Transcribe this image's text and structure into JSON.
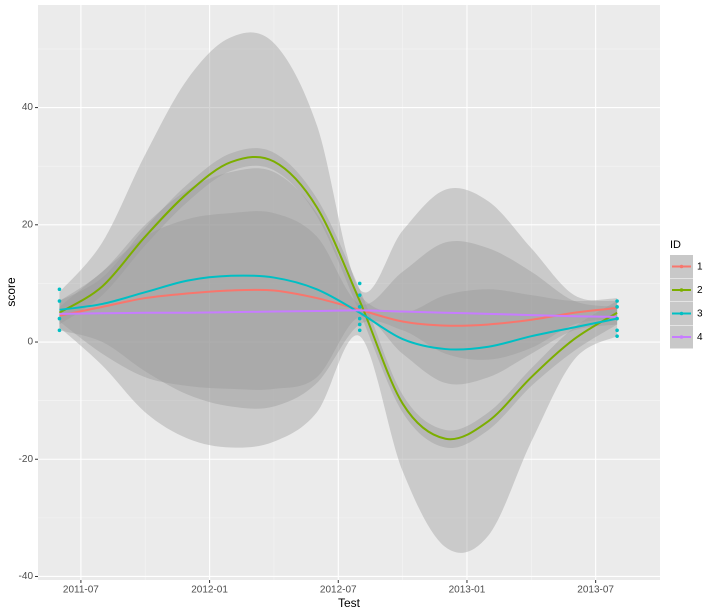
{
  "chart_data": {
    "type": "line",
    "x_label": "Test",
    "y_label": "score",
    "legend_title": "ID",
    "legend_position": "right",
    "grid": true,
    "x": [
      "2011-06",
      "2011-08",
      "2011-10",
      "2011-12",
      "2012-02",
      "2012-04",
      "2012-06",
      "2012-08",
      "2012-10",
      "2012-12",
      "2013-02",
      "2013-04",
      "2013-06",
      "2013-08"
    ],
    "xlim": [
      "2011-05",
      "2013-10"
    ],
    "xticks": [
      "2011-07",
      "2012-01",
      "2012-07",
      "2013-01",
      "2013-07"
    ],
    "xminorticks": [
      "2011-10",
      "2012-04",
      "2012-10",
      "2013-04"
    ],
    "ylim": [
      -40.6,
      57.5
    ],
    "yticks": [
      -40,
      -20,
      0,
      20,
      40
    ],
    "yminorticks": [
      -30,
      -10,
      10,
      30,
      50
    ],
    "ribbon_color": "#999999",
    "series": [
      {
        "name": "1",
        "color": "#f8766d",
        "values": [
          4.5,
          6,
          7.5,
          8.3,
          8.8,
          8.8,
          7.5,
          5.5,
          3.5,
          2.8,
          3,
          3.8,
          5,
          5.8
        ],
        "upper": [
          7,
          12,
          20,
          26,
          29,
          29,
          22,
          8,
          5,
          8,
          9,
          8,
          7,
          7.5
        ],
        "lower": [
          2,
          0,
          -5,
          -9,
          -11,
          -11,
          -7,
          3,
          2,
          -2,
          -3,
          -1,
          3,
          4
        ]
      },
      {
        "name": "2",
        "color": "#7cae00",
        "values": [
          5,
          9.5,
          18,
          25.5,
          30.7,
          30.8,
          23,
          7,
          -10.5,
          -16.5,
          -13.5,
          -6,
          0.5,
          5
        ],
        "upper": [
          7,
          11,
          19.5,
          27,
          32.2,
          32.3,
          24.5,
          9,
          -9,
          -15,
          -12,
          -4.5,
          2.5,
          7
        ],
        "lower": [
          3,
          8,
          16.5,
          24,
          29.2,
          29.3,
          21.5,
          5,
          -12,
          -18,
          -15,
          -7.5,
          -1.5,
          3
        ]
      },
      {
        "name": "3",
        "color": "#00bfc4",
        "values": [
          5.5,
          6.5,
          8.5,
          10.5,
          11.3,
          11,
          9,
          5,
          0.5,
          -1.2,
          -0.8,
          1,
          2.5,
          4
        ],
        "upper": [
          8.5,
          17,
          32,
          45,
          52,
          51,
          37,
          9,
          19,
          26,
          24,
          16,
          8,
          7
        ],
        "lower": [
          2.5,
          -4,
          -12,
          -16.5,
          -18,
          -17,
          -12,
          1,
          -22,
          -35,
          -33,
          -17,
          -3,
          1
        ]
      },
      {
        "name": "4",
        "color": "#c77cff",
        "values": [
          4.8,
          4.9,
          5,
          5,
          5.1,
          5.2,
          5.3,
          5.4,
          5.2,
          5,
          4.8,
          4.6,
          4.4,
          4.3
        ],
        "upper": [
          6,
          12,
          18,
          21,
          22,
          22,
          18,
          6.5,
          12,
          17,
          16,
          12,
          7,
          6
        ],
        "lower": [
          3.5,
          -2,
          -6,
          -7.5,
          -8,
          -8,
          -6,
          4.3,
          -2,
          -7,
          -6,
          -2,
          2,
          3
        ]
      }
    ],
    "observations": {
      "color": "#00bfc4",
      "x": [
        "2011-06",
        "2011-06",
        "2011-06",
        "2011-06",
        "2012-08",
        "2012-08",
        "2012-08",
        "2012-08",
        "2012-08",
        "2012-08",
        "2013-08",
        "2013-08",
        "2013-08",
        "2013-08",
        "2013-08"
      ],
      "values": [
        9,
        7,
        4,
        2,
        10,
        8,
        6,
        4,
        3,
        2,
        7,
        6,
        4,
        2,
        1
      ]
    }
  }
}
